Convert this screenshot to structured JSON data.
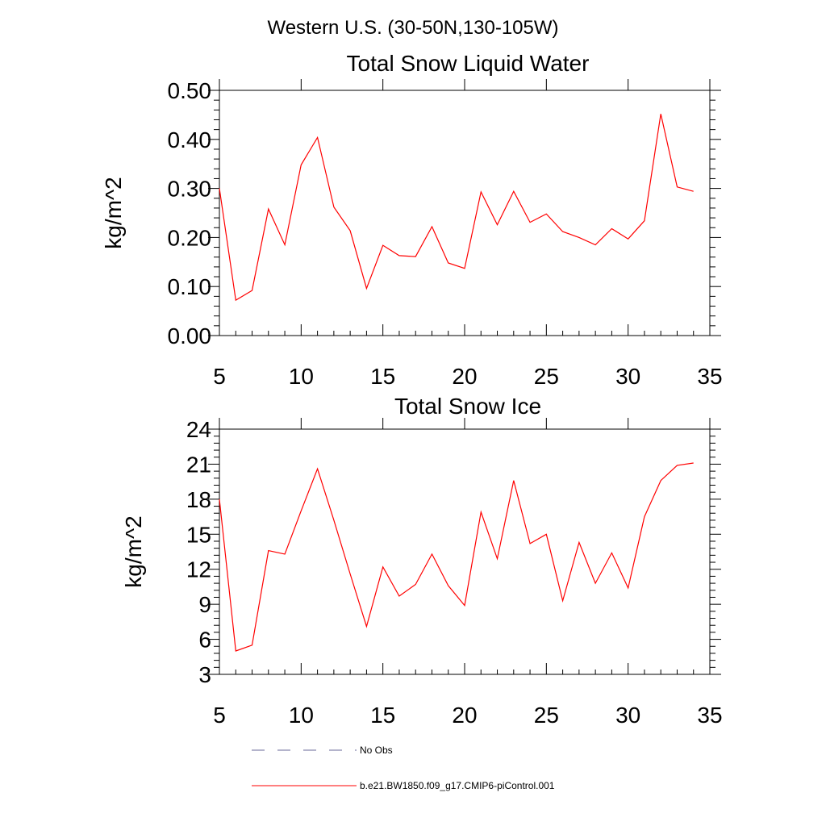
{
  "figure": {
    "suptitle": "Western U.S. (30-50N,130-105W)"
  },
  "chart_data": [
    {
      "type": "line",
      "title": "Total Snow Liquid Water",
      "xlabel": "",
      "ylabel": "kg/m^2",
      "xlim": [
        5,
        35
      ],
      "ylim": [
        0.0,
        0.5
      ],
      "x_ticks": [
        5,
        10,
        15,
        20,
        25,
        30,
        35
      ],
      "y_ticks": [
        0.0,
        0.1,
        0.2,
        0.3,
        0.4,
        0.5
      ],
      "y_tick_labels": [
        "0.00",
        "0.10",
        "0.20",
        "0.30",
        "0.40",
        "0.50"
      ],
      "x": [
        5,
        6,
        7,
        8,
        9,
        10,
        11,
        12,
        13,
        14,
        15,
        16,
        17,
        18,
        19,
        20,
        21,
        22,
        23,
        24,
        25,
        26,
        27,
        28,
        29,
        30,
        31,
        32,
        33,
        34
      ],
      "series": [
        {
          "name": "b.e21.BW1850.f09_g17.CMIP6-piControl.001",
          "color": "#ff0000",
          "values": [
            0.3,
            0.072,
            0.092,
            0.258,
            0.185,
            0.348,
            0.404,
            0.262,
            0.214,
            0.096,
            0.184,
            0.163,
            0.161,
            0.222,
            0.148,
            0.137,
            0.293,
            0.226,
            0.294,
            0.231,
            0.248,
            0.212,
            0.2,
            0.185,
            0.218,
            0.197,
            0.234,
            0.452,
            0.303,
            0.294
          ]
        }
      ]
    },
    {
      "type": "line",
      "title": "Total Snow Ice",
      "xlabel": "",
      "ylabel": "kg/m^2",
      "xlim": [
        5,
        35
      ],
      "ylim": [
        3,
        24
      ],
      "x_ticks": [
        5,
        10,
        15,
        20,
        25,
        30,
        35
      ],
      "y_ticks": [
        3,
        6,
        9,
        12,
        15,
        18,
        21,
        24
      ],
      "y_tick_labels": [
        "3",
        "6",
        "9",
        "12",
        "15",
        "18",
        "21",
        "24"
      ],
      "x": [
        5,
        6,
        7,
        8,
        9,
        10,
        11,
        12,
        13,
        14,
        15,
        16,
        17,
        18,
        19,
        20,
        21,
        22,
        23,
        24,
        25,
        26,
        27,
        28,
        29,
        30,
        31,
        32,
        33,
        34
      ],
      "series": [
        {
          "name": "b.e21.BW1850.f09_g17.CMIP6-piControl.001",
          "color": "#ff0000",
          "values": [
            18.0,
            5.0,
            5.5,
            13.6,
            13.3,
            17.0,
            20.6,
            16.2,
            11.6,
            7.1,
            12.2,
            9.7,
            10.7,
            13.3,
            10.6,
            8.9,
            16.9,
            12.9,
            19.6,
            14.2,
            15.0,
            9.3,
            14.3,
            10.8,
            13.4,
            10.4,
            16.5,
            19.6,
            20.9,
            21.1
          ]
        }
      ]
    }
  ],
  "legend": {
    "items": [
      {
        "label": "No Obs",
        "style": "dashed",
        "color": "#6a6a9a"
      },
      {
        "label": "b.e21.BW1850.f09_g17.CMIP6-piControl.001",
        "style": "solid",
        "color": "#ff0000"
      }
    ]
  }
}
